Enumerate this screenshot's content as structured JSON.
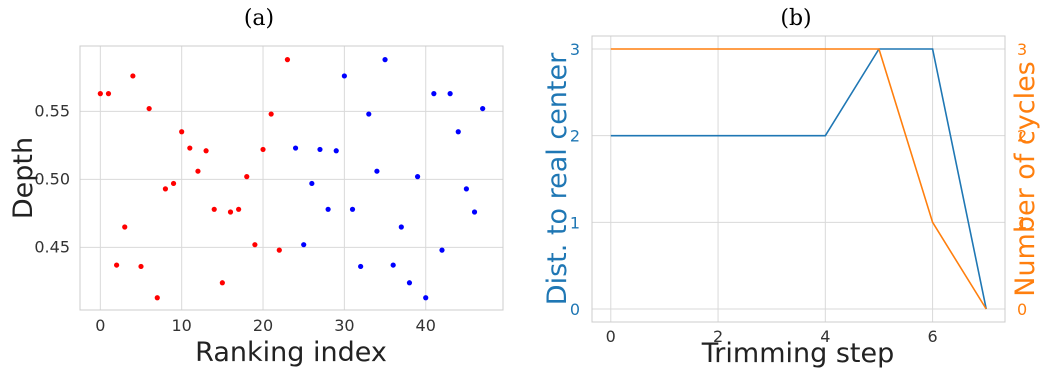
{
  "chart_data": [
    {
      "type": "scatter",
      "title": "(a)",
      "xlabel": "Ranking index",
      "ylabel": "Depth",
      "xlim": [
        -2.5,
        49.5
      ],
      "ylim": [
        0.404,
        0.598
      ],
      "xticks": [
        0,
        10,
        20,
        30,
        40
      ],
      "yticks": [
        0.45,
        0.5,
        0.55
      ],
      "ytick_labels": [
        "0.45",
        "0.50",
        "0.55"
      ],
      "grid": true,
      "series": [
        {
          "color": "#ff0000",
          "points": [
            [
              0,
              0.563
            ],
            [
              1,
              0.563
            ],
            [
              2,
              0.437
            ],
            [
              3,
              0.465
            ],
            [
              4,
              0.576
            ],
            [
              5,
              0.436
            ],
            [
              6,
              0.552
            ],
            [
              7,
              0.413
            ],
            [
              8,
              0.493
            ],
            [
              9,
              0.497
            ],
            [
              10,
              0.535
            ],
            [
              11,
              0.523
            ],
            [
              12,
              0.506
            ],
            [
              13,
              0.521
            ],
            [
              14,
              0.478
            ],
            [
              15,
              0.424
            ],
            [
              16,
              0.476
            ],
            [
              17,
              0.478
            ],
            [
              18,
              0.502
            ],
            [
              19,
              0.452
            ],
            [
              20,
              0.522
            ],
            [
              21,
              0.548
            ],
            [
              22,
              0.448
            ],
            [
              23,
              0.588
            ]
          ]
        },
        {
          "color": "#0000ff",
          "points": [
            [
              24,
              0.523
            ],
            [
              25,
              0.452
            ],
            [
              26,
              0.497
            ],
            [
              27,
              0.522
            ],
            [
              28,
              0.478
            ],
            [
              29,
              0.521
            ],
            [
              30,
              0.576
            ],
            [
              31,
              0.478
            ],
            [
              32,
              0.436
            ],
            [
              33,
              0.548
            ],
            [
              34,
              0.506
            ],
            [
              35,
              0.588
            ],
            [
              36,
              0.437
            ],
            [
              37,
              0.465
            ],
            [
              38,
              0.424
            ],
            [
              39,
              0.502
            ],
            [
              40,
              0.413
            ],
            [
              41,
              0.563
            ],
            [
              42,
              0.448
            ],
            [
              43,
              0.563
            ],
            [
              44,
              0.535
            ],
            [
              45,
              0.493
            ],
            [
              46,
              0.476
            ],
            [
              47,
              0.552
            ]
          ]
        }
      ]
    },
    {
      "type": "line",
      "title": "(b)",
      "xlabel": "Trimming step",
      "ylabel": "Dist. to real center",
      "ylabel_right": "Number of cycles",
      "xlim": [
        -0.35,
        7.35
      ],
      "ylim": [
        -0.15,
        3.15
      ],
      "xticks": [
        0,
        2,
        4,
        6
      ],
      "yticks": [
        0,
        1,
        2,
        3
      ],
      "grid": true,
      "series": [
        {
          "axis": "left",
          "color": "#1f77b4",
          "x": [
            0,
            1,
            2,
            3,
            4,
            5,
            6,
            7
          ],
          "values": [
            2,
            2,
            2,
            2,
            2,
            3,
            3,
            0
          ]
        },
        {
          "axis": "right",
          "color": "#ff7f0e",
          "x": [
            0,
            1,
            2,
            3,
            4,
            5,
            6,
            7
          ],
          "values": [
            3,
            3,
            3,
            3,
            3,
            3,
            1,
            0
          ]
        }
      ]
    }
  ]
}
